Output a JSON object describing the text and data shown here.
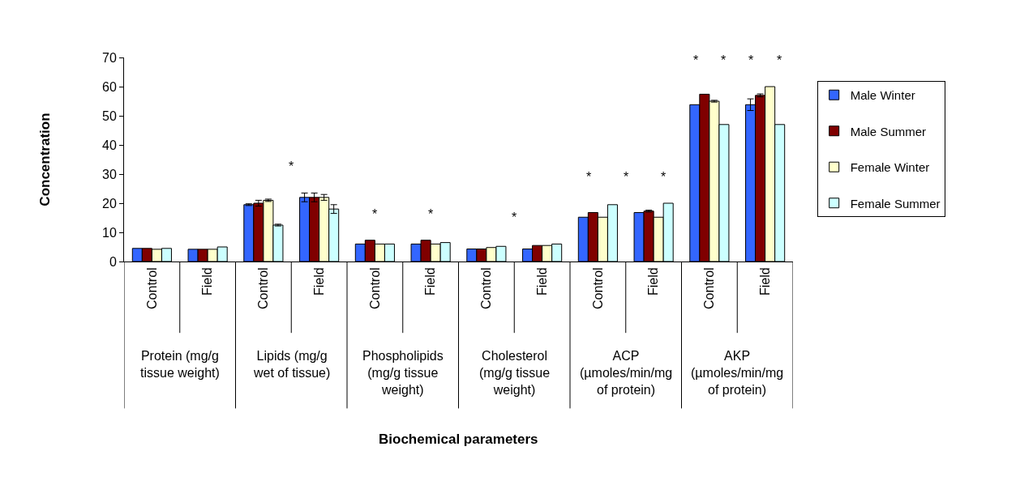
{
  "chart_data": {
    "type": "bar",
    "ylabel": "Concentration",
    "categories": [
      "Control",
      "Field",
      "Control",
      "Field",
      "Control",
      "Field",
      "Control",
      "Field",
      "Control",
      "Field",
      "Control",
      "Field"
    ],
    "series": [
      {
        "name": "Male Winter",
        "color": "#3366ff",
        "values": [
          4.5,
          4.2,
          19.5,
          22,
          6,
          6,
          4.3,
          4.3,
          15.2,
          16.8,
          53.8,
          53.8
        ],
        "errors": [
          null,
          null,
          0.3,
          1.5,
          null,
          null,
          null,
          null,
          null,
          null,
          null,
          2
        ]
      },
      {
        "name": "Male Summer",
        "color": "#800000",
        "values": [
          4.5,
          4.2,
          20,
          22,
          7.3,
          7.3,
          4.3,
          5.5,
          16.8,
          17.3,
          57.4,
          57
        ],
        "errors": [
          null,
          null,
          1,
          1.5,
          null,
          null,
          null,
          null,
          null,
          0.3,
          null,
          0.5
        ]
      },
      {
        "name": "Female Winter",
        "color": "#ffffcc",
        "values": [
          4.2,
          4.2,
          21,
          22,
          6,
          6,
          4.8,
          5.5,
          15.2,
          15.2,
          55,
          60
        ],
        "errors": [
          null,
          null,
          0.4,
          1,
          null,
          null,
          null,
          null,
          null,
          null,
          0.3,
          null
        ]
      },
      {
        "name": "Female Summer",
        "color": "#ccffff",
        "values": [
          4.5,
          5,
          12.5,
          18,
          6,
          6.5,
          5.2,
          6,
          19.5,
          20,
          47,
          47
        ],
        "errors": [
          null,
          null,
          0.3,
          1.5,
          null,
          null,
          null,
          null,
          null,
          null,
          null,
          null
        ]
      }
    ],
    "ylim": [
      0,
      70
    ],
    "yticks": [
      0,
      10,
      20,
      30,
      40,
      50,
      60,
      70
    ],
    "grid": false,
    "legend": "right",
    "annotations": [
      "Biochemical parameters",
      "Protein (mg/g tissue weight)",
      "Lipids (mg/g wet of tissue)",
      "*",
      "Phospholipids (mg/g tissue weight)",
      "*",
      "*",
      "Cholesterol (mg/g tissue weight)",
      "*",
      "ACP (µmoles/min/mg of protein)",
      "*",
      "*",
      "*",
      "AKP (µmoles/min/mg of protein)",
      "*",
      "*",
      "*",
      "*"
    ]
  }
}
